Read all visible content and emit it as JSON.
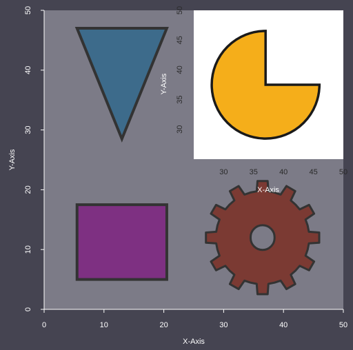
{
  "colors": {
    "background": "#454451",
    "plot_bg": "#7c7b87",
    "inset_bg": "#ffffff",
    "outline": "#333333",
    "triangle": "#3d6b8b",
    "square": "#7e3082",
    "gear": "#7b3a33",
    "pie": "#f5ae1a"
  },
  "chart_data": [
    {
      "type": "scatter",
      "role": "main",
      "title": "",
      "xlabel": "X-Axis",
      "ylabel": "Y-Axis",
      "xlim": [
        0,
        50
      ],
      "ylim": [
        0,
        50
      ],
      "xticks": [
        "0",
        "10",
        "20",
        "30",
        "40",
        "50"
      ],
      "yticks": [
        "0",
        "10",
        "20",
        "30",
        "40",
        "50"
      ],
      "grid": false,
      "shapes": [
        {
          "name": "triangle",
          "kind": "triangle-down",
          "color": "#3d6b8b",
          "points": [
            [
              5.5,
              47
            ],
            [
              20.5,
              47
            ],
            [
              13,
              28.5
            ]
          ]
        },
        {
          "name": "square",
          "kind": "rectangle",
          "color": "#7e3082",
          "x": [
            5.5,
            20.5
          ],
          "y": [
            5,
            17.5
          ]
        },
        {
          "name": "gear",
          "kind": "gear",
          "color": "#7b3a33",
          "center": [
            36.5,
            12
          ],
          "outer_radius": 9.5,
          "inner_radius": 7.8,
          "hole_radius": 2,
          "teeth": 12
        }
      ]
    },
    {
      "type": "scatter",
      "role": "inset",
      "title": "",
      "xlabel": "X-Axis",
      "ylabel": "Y-Axis",
      "xlim": [
        25,
        50
      ],
      "ylim": [
        25,
        50
      ],
      "xticks": [
        "30",
        "35",
        "40",
        "45",
        "50"
      ],
      "yticks": [
        "30",
        "35",
        "40",
        "45",
        "50"
      ],
      "grid": false,
      "shapes": [
        {
          "name": "pacman",
          "kind": "pie",
          "color": "#f5ae1a",
          "center": [
            37,
            37.5
          ],
          "radius": 9,
          "missing_wedge_degrees": [
            0,
            90
          ]
        }
      ]
    }
  ]
}
